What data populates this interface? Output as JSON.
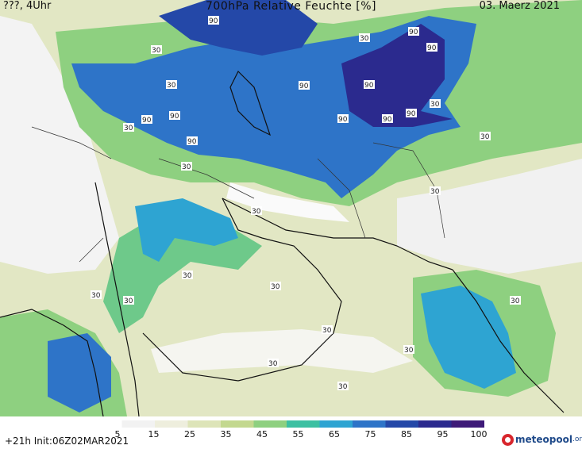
{
  "header": {
    "left": "???, 4Uhr",
    "title": "700hPa Relative Feuchte [%]",
    "right": "03. Maerz 2021"
  },
  "footer": {
    "init": "+21h Init:06Z02MAR2021",
    "logo_text": "meteopool",
    "logo_tld": ".org"
  },
  "legend": {
    "labels": [
      "5",
      "15",
      "25",
      "35",
      "45",
      "55",
      "65",
      "75",
      "85",
      "95",
      "100"
    ],
    "colors": [
      "#ffffff",
      "#f2f2f2",
      "#eeeedd",
      "#dde4b8",
      "#c3d88f",
      "#8ed080",
      "#3cc0a2",
      "#2ea4d2",
      "#2e74c8",
      "#2448a8",
      "#2b2a8e",
      "#3e1a78"
    ]
  },
  "contour_labels": [
    "90",
    "30"
  ]
}
